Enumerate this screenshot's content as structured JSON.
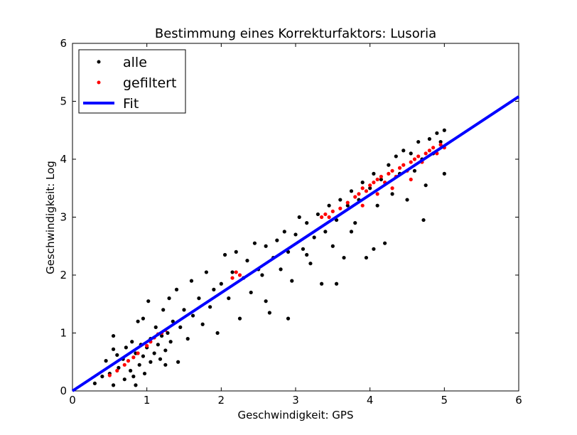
{
  "chart_data": {
    "type": "scatter",
    "title": "Bestimmung eines Korrekturfaktors: Lusoria",
    "xlabel": "Geschwindigkeit: GPS",
    "ylabel": "Geschwindigkeit: Log",
    "xlim": [
      0,
      6
    ],
    "ylim": [
      0,
      6
    ],
    "xticks": [
      "0",
      "1",
      "2",
      "3",
      "4",
      "5",
      "6"
    ],
    "yticks": [
      "0",
      "1",
      "2",
      "3",
      "4",
      "5",
      "6"
    ],
    "grid": false,
    "legend_position": "top-left",
    "legend": [
      {
        "label": "alle",
        "marker": "dot",
        "color": "#000000"
      },
      {
        "label": "gefiltert",
        "marker": "dot",
        "color": "#ff0000"
      },
      {
        "label": "Fit",
        "marker": "line",
        "color": "#0000ff"
      }
    ],
    "series": [
      {
        "name": "alle",
        "color": "#000000",
        "points": [
          [
            0.3,
            0.13
          ],
          [
            0.4,
            0.25
          ],
          [
            0.45,
            0.52
          ],
          [
            0.5,
            0.3
          ],
          [
            0.55,
            0.72
          ],
          [
            0.55,
            0.95
          ],
          [
            0.6,
            0.62
          ],
          [
            0.62,
            0.4
          ],
          [
            0.68,
            0.55
          ],
          [
            0.7,
            0.2
          ],
          [
            0.72,
            0.75
          ],
          [
            0.78,
            0.35
          ],
          [
            0.8,
            0.85
          ],
          [
            0.82,
            0.25
          ],
          [
            0.85,
            0.65
          ],
          [
            0.88,
            1.2
          ],
          [
            0.9,
            0.45
          ],
          [
            0.92,
            0.8
          ],
          [
            0.95,
            0.6
          ],
          [
            0.97,
            0.3
          ],
          [
            1.0,
            0.75
          ],
          [
            1.02,
            1.55
          ],
          [
            1.05,
            0.5
          ],
          [
            1.05,
            0.9
          ],
          [
            1.1,
            0.65
          ],
          [
            1.12,
            1.1
          ],
          [
            1.15,
            0.8
          ],
          [
            1.18,
            0.55
          ],
          [
            1.2,
            0.95
          ],
          [
            1.22,
            1.4
          ],
          [
            1.25,
            0.7
          ],
          [
            1.28,
            1.0
          ],
          [
            1.3,
            1.6
          ],
          [
            1.32,
            0.85
          ],
          [
            1.35,
            1.2
          ],
          [
            1.4,
            1.75
          ],
          [
            1.42,
            0.5
          ],
          [
            1.45,
            1.1
          ],
          [
            1.5,
            1.4
          ],
          [
            1.55,
            0.9
          ],
          [
            1.6,
            1.9
          ],
          [
            1.62,
            1.3
          ],
          [
            1.7,
            1.6
          ],
          [
            1.75,
            1.15
          ],
          [
            1.8,
            2.05
          ],
          [
            1.85,
            1.45
          ],
          [
            1.9,
            1.75
          ],
          [
            1.95,
            1.0
          ],
          [
            2.0,
            1.85
          ],
          [
            2.05,
            2.35
          ],
          [
            2.1,
            1.6
          ],
          [
            2.15,
            2.05
          ],
          [
            2.2,
            2.4
          ],
          [
            2.25,
            1.25
          ],
          [
            2.3,
            1.95
          ],
          [
            2.35,
            2.25
          ],
          [
            2.4,
            1.7
          ],
          [
            2.45,
            2.55
          ],
          [
            2.5,
            2.1
          ],
          [
            2.55,
            2.0
          ],
          [
            2.6,
            2.5
          ],
          [
            2.65,
            1.35
          ],
          [
            2.7,
            2.3
          ],
          [
            2.75,
            2.6
          ],
          [
            2.8,
            2.1
          ],
          [
            2.85,
            2.75
          ],
          [
            2.9,
            2.4
          ],
          [
            2.95,
            1.9
          ],
          [
            3.0,
            2.7
          ],
          [
            3.05,
            3.0
          ],
          [
            3.1,
            2.45
          ],
          [
            3.15,
            2.9
          ],
          [
            3.2,
            2.2
          ],
          [
            3.25,
            2.65
          ],
          [
            3.3,
            3.05
          ],
          [
            3.35,
            1.85
          ],
          [
            3.4,
            2.75
          ],
          [
            3.45,
            3.2
          ],
          [
            3.5,
            2.5
          ],
          [
            3.55,
            2.95
          ],
          [
            3.6,
            3.3
          ],
          [
            3.65,
            2.3
          ],
          [
            3.7,
            3.2
          ],
          [
            3.75,
            3.45
          ],
          [
            3.8,
            2.9
          ],
          [
            3.85,
            3.3
          ],
          [
            3.9,
            3.6
          ],
          [
            3.95,
            2.3
          ],
          [
            4.0,
            3.5
          ],
          [
            4.05,
            3.75
          ],
          [
            4.1,
            3.2
          ],
          [
            4.15,
            3.65
          ],
          [
            4.2,
            2.55
          ],
          [
            4.25,
            3.9
          ],
          [
            4.3,
            3.4
          ],
          [
            4.35,
            4.05
          ],
          [
            4.4,
            3.75
          ],
          [
            4.45,
            4.15
          ],
          [
            4.5,
            3.3
          ],
          [
            4.55,
            4.1
          ],
          [
            4.6,
            3.8
          ],
          [
            4.65,
            4.3
          ],
          [
            4.7,
            4.0
          ],
          [
            4.75,
            3.55
          ],
          [
            4.8,
            4.35
          ],
          [
            4.85,
            4.1
          ],
          [
            4.9,
            4.45
          ],
          [
            4.95,
            4.3
          ],
          [
            5.0,
            4.5
          ],
          [
            5.0,
            3.75
          ],
          [
            4.72,
            2.95
          ],
          [
            4.05,
            2.45
          ],
          [
            3.75,
            2.75
          ],
          [
            3.15,
            2.35
          ],
          [
            3.55,
            1.85
          ],
          [
            2.6,
            1.55
          ],
          [
            2.9,
            1.25
          ],
          [
            1.25,
            0.45
          ],
          [
            0.85,
            0.1
          ],
          [
            0.55,
            0.1
          ],
          [
            0.95,
            1.25
          ]
        ]
      },
      {
        "name": "gefiltert",
        "color": "#ff0000",
        "points": [
          [
            0.5,
            0.27
          ],
          [
            0.6,
            0.35
          ],
          [
            0.7,
            0.45
          ],
          [
            0.75,
            0.52
          ],
          [
            0.82,
            0.58
          ],
          [
            0.88,
            0.65
          ],
          [
            1.0,
            0.78
          ],
          [
            1.05,
            0.85
          ],
          [
            1.1,
            0.92
          ],
          [
            1.15,
            0.98
          ],
          [
            1.2,
            1.0
          ],
          [
            1.25,
            1.05
          ],
          [
            2.15,
            1.95
          ],
          [
            2.2,
            2.05
          ],
          [
            2.25,
            2.0
          ],
          [
            3.35,
            3.0
          ],
          [
            3.4,
            3.05
          ],
          [
            3.45,
            3.0
          ],
          [
            3.5,
            3.1
          ],
          [
            3.6,
            3.15
          ],
          [
            3.7,
            3.25
          ],
          [
            3.8,
            3.35
          ],
          [
            3.85,
            3.4
          ],
          [
            3.9,
            3.5
          ],
          [
            3.95,
            3.45
          ],
          [
            4.0,
            3.55
          ],
          [
            4.05,
            3.6
          ],
          [
            4.1,
            3.65
          ],
          [
            4.15,
            3.7
          ],
          [
            4.2,
            3.6
          ],
          [
            4.25,
            3.75
          ],
          [
            4.3,
            3.8
          ],
          [
            4.35,
            3.7
          ],
          [
            4.4,
            3.85
          ],
          [
            4.45,
            3.9
          ],
          [
            4.5,
            3.8
          ],
          [
            4.55,
            3.95
          ],
          [
            4.6,
            4.0
          ],
          [
            4.65,
            4.05
          ],
          [
            4.7,
            3.95
          ],
          [
            4.75,
            4.1
          ],
          [
            4.8,
            4.15
          ],
          [
            4.85,
            4.2
          ],
          [
            4.9,
            4.1
          ],
          [
            4.95,
            4.25
          ],
          [
            5.0,
            4.2
          ],
          [
            4.55,
            3.65
          ],
          [
            4.3,
            3.5
          ],
          [
            4.1,
            3.4
          ],
          [
            3.9,
            3.2
          ]
        ]
      }
    ],
    "fit": {
      "name": "Fit",
      "color": "#0000ff",
      "x": [
        0,
        6
      ],
      "y": [
        0,
        5.08
      ]
    }
  }
}
